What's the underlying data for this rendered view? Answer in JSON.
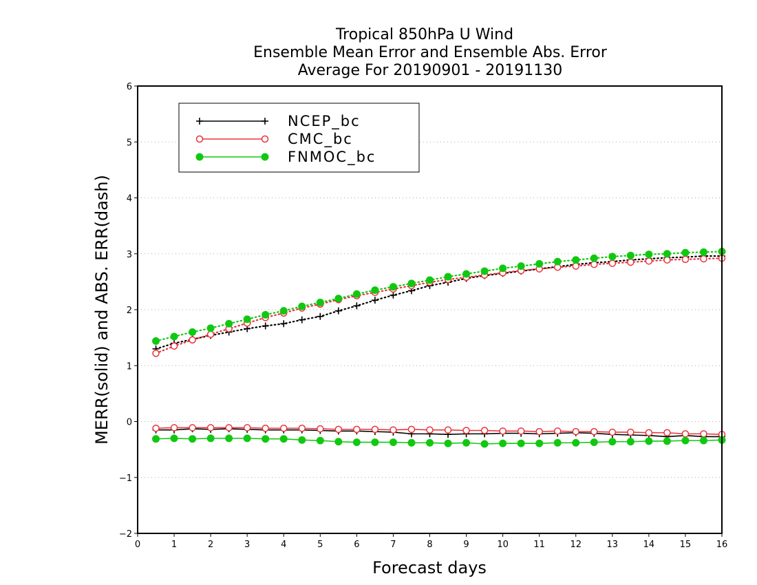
{
  "chart_data": {
    "type": "line",
    "title": [
      "Tropical 850hPa U Wind",
      "Ensemble Mean Error and Ensemble Abs. Error",
      "Average For 20190901 - 20191130"
    ],
    "xlabel": "Forecast days",
    "ylabel": "MERR(solid) and ABS. ERR(dash)",
    "xlim": [
      0,
      16
    ],
    "ylim": [
      -2,
      6
    ],
    "xticks": [
      "0",
      "1",
      "2",
      "3",
      "4",
      "5",
      "6",
      "7",
      "8",
      "9",
      "10",
      "11",
      "12",
      "13",
      "14",
      "15",
      "16"
    ],
    "yticks": [
      "−2",
      "−1",
      "0",
      "1",
      "2",
      "3",
      "4",
      "5",
      "6"
    ],
    "grid": true,
    "legend_position": "top-left",
    "x": [
      0.5,
      1,
      1.5,
      2,
      2.5,
      3,
      3.5,
      4,
      4.5,
      5,
      5.5,
      6,
      6.5,
      7,
      7.5,
      8,
      8.5,
      9,
      9.5,
      10,
      10.5,
      11,
      11.5,
      12,
      12.5,
      13,
      13.5,
      14,
      14.5,
      15,
      15.5,
      16
    ],
    "series": [
      {
        "name": "NCEP_bc",
        "color": "#000000",
        "marker": "plus",
        "merr": [
          -0.15,
          -0.15,
          -0.13,
          -0.14,
          -0.13,
          -0.14,
          -0.15,
          -0.15,
          -0.15,
          -0.16,
          -0.17,
          -0.17,
          -0.18,
          -0.19,
          -0.22,
          -0.22,
          -0.23,
          -0.22,
          -0.22,
          -0.21,
          -0.21,
          -0.22,
          -0.21,
          -0.2,
          -0.21,
          -0.23,
          -0.24,
          -0.25,
          -0.27,
          -0.25,
          -0.27,
          -0.27
        ],
        "abs_err": [
          1.3,
          1.4,
          1.47,
          1.54,
          1.6,
          1.66,
          1.71,
          1.75,
          1.82,
          1.88,
          1.98,
          2.07,
          2.17,
          2.26,
          2.34,
          2.43,
          2.49,
          2.56,
          2.61,
          2.65,
          2.69,
          2.73,
          2.77,
          2.81,
          2.84,
          2.86,
          2.89,
          2.91,
          2.93,
          2.94,
          2.96,
          2.96
        ]
      },
      {
        "name": "CMC_bc",
        "color": "#e8333a",
        "marker": "circle-open",
        "merr": [
          -0.12,
          -0.11,
          -0.11,
          -0.11,
          -0.11,
          -0.11,
          -0.12,
          -0.12,
          -0.12,
          -0.13,
          -0.14,
          -0.14,
          -0.14,
          -0.15,
          -0.14,
          -0.15,
          -0.15,
          -0.16,
          -0.16,
          -0.17,
          -0.17,
          -0.18,
          -0.17,
          -0.18,
          -0.18,
          -0.19,
          -0.19,
          -0.2,
          -0.2,
          -0.22,
          -0.22,
          -0.23
        ],
        "abs_err": [
          1.22,
          1.35,
          1.46,
          1.56,
          1.66,
          1.76,
          1.86,
          1.94,
          2.03,
          2.1,
          2.18,
          2.25,
          2.31,
          2.37,
          2.43,
          2.49,
          2.54,
          2.58,
          2.62,
          2.66,
          2.7,
          2.73,
          2.76,
          2.78,
          2.81,
          2.83,
          2.85,
          2.87,
          2.89,
          2.9,
          2.91,
          2.92
        ]
      },
      {
        "name": "FNMOC_bc",
        "color": "#11c811",
        "marker": "circle-filled",
        "merr": [
          -0.31,
          -0.3,
          -0.31,
          -0.3,
          -0.3,
          -0.3,
          -0.31,
          -0.31,
          -0.33,
          -0.34,
          -0.36,
          -0.37,
          -0.37,
          -0.37,
          -0.38,
          -0.38,
          -0.39,
          -0.38,
          -0.4,
          -0.39,
          -0.39,
          -0.39,
          -0.38,
          -0.38,
          -0.37,
          -0.36,
          -0.36,
          -0.35,
          -0.35,
          -0.34,
          -0.34,
          -0.33
        ],
        "abs_err": [
          1.44,
          1.52,
          1.6,
          1.67,
          1.75,
          1.83,
          1.91,
          1.98,
          2.06,
          2.13,
          2.2,
          2.28,
          2.35,
          2.41,
          2.47,
          2.53,
          2.59,
          2.64,
          2.69,
          2.74,
          2.78,
          2.82,
          2.86,
          2.89,
          2.92,
          2.95,
          2.97,
          2.99,
          3.0,
          3.02,
          3.03,
          3.04
        ]
      }
    ]
  }
}
